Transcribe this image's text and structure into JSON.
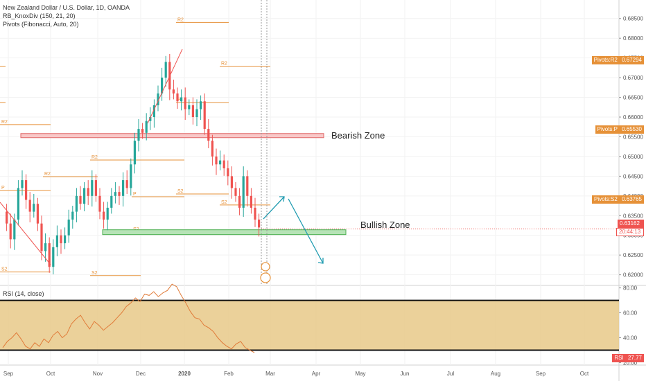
{
  "legend": {
    "symbol": "New Zealand Dollar / U.S. Dollar, 1D, OANDA",
    "indicator1": "RB_KnoxDiv (150, 21, 20)",
    "indicator2": "Pivots (Fibonacci, Auto, 20)"
  },
  "rsi_title": "RSI (14, close)",
  "annotations": {
    "bearish_zone": "Bearish Zone",
    "bullish_zone": "Bullish  Zone"
  },
  "price_tags": {
    "r2": {
      "label": "Pivots:R2",
      "value": "0.67294"
    },
    "p": {
      "label": "Pivots:P",
      "value": "0.65530"
    },
    "s2": {
      "label": "Pivots:S2",
      "value": "0.63765"
    },
    "last": "0.63162",
    "countdown": "20:44:13",
    "rsi_label": "RSI",
    "rsi_value": "27.77"
  },
  "colors": {
    "up": "#26a69a",
    "down": "#ef5350",
    "pivot": "#e69138",
    "bearish_fill": "#f8c8c8",
    "bearish_border": "#e06666",
    "bullish_fill": "#b6e3b6",
    "bullish_border": "#4caf50",
    "arrow": "#1e9bb0",
    "rsi_line": "#e07b39",
    "rsi_band": "#e8c988"
  },
  "chart_data": [
    {
      "type": "candlestick",
      "title": "New Zealand Dollar / U.S. Dollar, 1D, OANDA",
      "x_ticks": [
        "Sep",
        "Oct",
        "Nov",
        "Dec",
        "2020",
        "Feb",
        "Mar",
        "Apr",
        "May",
        "Jun",
        "Jul",
        "Aug",
        "Sep",
        "Oct"
      ],
      "y_ticks": [
        "0.68500",
        "0.68000",
        "0.67500",
        "0.67000",
        "0.66500",
        "0.66000",
        "0.65500",
        "0.65000",
        "0.64500",
        "0.64000",
        "0.63500",
        "0.63000",
        "0.62500",
        "0.62000"
      ],
      "ylim": [
        0.6173,
        0.6897
      ],
      "close_path": [
        0.636,
        0.633,
        0.629,
        0.634,
        0.642,
        0.644,
        0.639,
        0.636,
        0.638,
        0.633,
        0.626,
        0.628,
        0.622,
        0.627,
        0.63,
        0.628,
        0.63,
        0.634,
        0.636,
        0.64,
        0.638,
        0.642,
        0.64,
        0.644,
        0.64,
        0.636,
        0.634,
        0.637,
        0.64,
        0.641,
        0.64,
        0.644,
        0.642,
        0.648,
        0.654,
        0.657,
        0.656,
        0.659,
        0.66,
        0.663,
        0.666,
        0.67,
        0.674,
        0.667,
        0.666,
        0.664,
        0.665,
        0.662,
        0.663,
        0.66,
        0.662,
        0.664,
        0.657,
        0.654,
        0.65,
        0.648,
        0.649,
        0.647,
        0.645,
        0.642,
        0.64,
        0.637,
        0.645,
        0.64,
        0.637,
        0.634,
        0.632
      ],
      "pivot_levels": [
        {
          "label": "R2",
          "value": 0.684
        },
        {
          "label": "R2",
          "value": 0.6581
        },
        {
          "label": "R2",
          "value": 0.6729
        },
        {
          "label": "P",
          "value": 0.6637
        },
        {
          "label": "R2",
          "value": 0.6491
        },
        {
          "label": "R2",
          "value": 0.6449
        },
        {
          "label": "P",
          "value": 0.6398
        },
        {
          "label": "P",
          "value": 0.6414
        },
        {
          "label": "S2",
          "value": 0.6405
        },
        {
          "label": "S2",
          "value": 0.6377
        },
        {
          "label": "S2",
          "value": 0.6308
        },
        {
          "label": "S2",
          "value": 0.6207
        },
        {
          "label": "S2",
          "value": 0.6198
        }
      ],
      "zones": [
        {
          "name": "Bearish Zone",
          "value": 0.6553
        },
        {
          "name": "Bullish  Zone",
          "value": 0.6308
        }
      ],
      "last_price": 0.63162
    },
    {
      "type": "line",
      "title": "RSI (14, close)",
      "y_ticks": [
        "80.00",
        "60.00",
        "40.00",
        "20.00"
      ],
      "ylim": [
        18,
        82
      ],
      "bands": [
        30,
        70
      ],
      "values": [
        32,
        37,
        40,
        44,
        39,
        33,
        31,
        36,
        33,
        39,
        36,
        42,
        45,
        40,
        43,
        51,
        55,
        58,
        52,
        47,
        53,
        50,
        46,
        49,
        52,
        56,
        60,
        65,
        68,
        72,
        69,
        75,
        74,
        77,
        73,
        76,
        78,
        83,
        81,
        74,
        68,
        61,
        56,
        55,
        50,
        48,
        45,
        40,
        36,
        33,
        31,
        35,
        37,
        32,
        30,
        28
      ],
      "last_value": 27.77
    }
  ]
}
